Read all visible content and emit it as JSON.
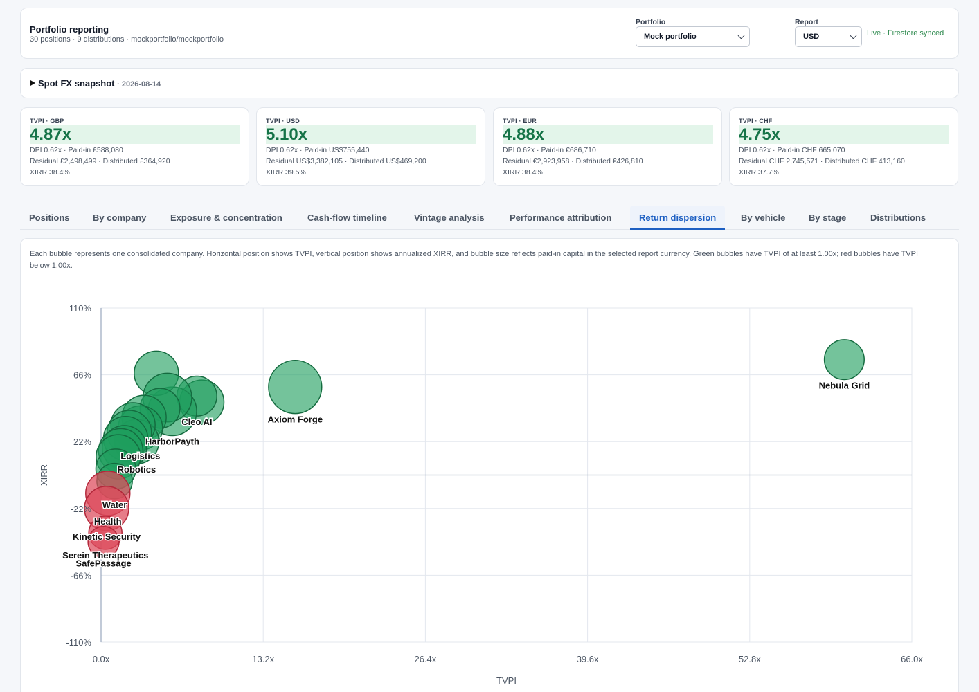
{
  "header": {
    "title": "Portfolio reporting",
    "subtitle": "30 positions · 9 distributions · mockportfolio/mockportfolio",
    "portfolio_label": "Portfolio",
    "portfolio_value": "Mock portfolio",
    "report_label": "Report",
    "report_value": "USD",
    "sync_status": "Live · Firestore synced"
  },
  "fx": {
    "label": "Spot FX snapshot",
    "date": "· 2026-08-14"
  },
  "kpis": [
    {
      "label": "TVPI · GBP",
      "value": "4.87x",
      "line1": "DPI 0.62x · Paid-in £588,080",
      "line2": "Residual £2,498,499 · Distributed £364,920",
      "line3": "XIRR 38.4%"
    },
    {
      "label": "TVPI · USD",
      "value": "5.10x",
      "line1": "DPI 0.62x · Paid-in US$755,440",
      "line2": "Residual US$3,382,105 · Distributed US$469,200",
      "line3": "XIRR 39.5%"
    },
    {
      "label": "TVPI · EUR",
      "value": "4.88x",
      "line1": "DPI 0.62x · Paid-in €686,710",
      "line2": "Residual €2,923,958 · Distributed €426,810",
      "line3": "XIRR 38.4%"
    },
    {
      "label": "TVPI · CHF",
      "value": "4.75x",
      "line1": "DPI 0.62x · Paid-in CHF 665,070",
      "line2": "Residual CHF 2,745,571 · Distributed CHF 413,160",
      "line3": "XIRR 37.7%"
    }
  ],
  "tabs": [
    {
      "label": "Positions"
    },
    {
      "label": "By company"
    },
    {
      "label": "Exposure & concentration"
    },
    {
      "label": "Cash-flow timeline"
    },
    {
      "label": "Vintage analysis"
    },
    {
      "label": "Performance attribution"
    },
    {
      "label": "Return dispersion",
      "active": true
    },
    {
      "label": "By vehicle"
    },
    {
      "label": "By stage"
    },
    {
      "label": "Distributions"
    }
  ],
  "chart_description": "Each bubble represents one consolidated company. Horizontal position shows TVPI, vertical position shows annualized XIRR, and bubble size reflects paid-in capital in the selected report currency. Green bubbles have TVPI of at least 1.00x; red bubbles have TVPI below 1.00x.",
  "colors": {
    "positive": "#1e9e5e",
    "negative": "#dc4a5a",
    "accent": "#1d5fc2"
  },
  "chart_data": {
    "type": "scatter",
    "xlabel": "TVPI",
    "ylabel": "XIRR",
    "xlim": [
      0,
      66
    ],
    "ylim": [
      -110,
      110
    ],
    "x_ticks": [
      "0.0x",
      "13.2x",
      "26.4x",
      "39.6x",
      "52.8x",
      "66.0x"
    ],
    "y_ticks": [
      "110%",
      "66%",
      "22%",
      "-22%",
      "-66%",
      "-110%"
    ],
    "grid": true,
    "points": [
      {
        "label": "Nebula Grid",
        "tvpi": 60.5,
        "xirr": 76,
        "size": 0.9,
        "positive": true
      },
      {
        "label": "Axiom Forge",
        "tvpi": 15.8,
        "xirr": 58,
        "size": 1.2,
        "positive": true
      },
      {
        "label": "",
        "tvpi": 8.2,
        "xirr": 48,
        "size": 1.0,
        "positive": true
      },
      {
        "label": "Cleo AI",
        "tvpi": 7.8,
        "xirr": 52,
        "size": 0.9,
        "positive": true
      },
      {
        "label": "HarborPayth",
        "tvpi": 5.8,
        "xirr": 42,
        "size": 1.1,
        "positive": true
      },
      {
        "label": "",
        "tvpi": 4.5,
        "xirr": 67,
        "size": 1.0,
        "positive": true
      },
      {
        "label": "",
        "tvpi": 5.4,
        "xirr": 51,
        "size": 1.1,
        "positive": true
      },
      {
        "label": "",
        "tvpi": 4.8,
        "xirr": 44,
        "size": 0.9,
        "positive": true
      },
      {
        "label": "",
        "tvpi": 3.5,
        "xirr": 38,
        "size": 1.0,
        "positive": true
      },
      {
        "label": "Logistics",
        "tvpi": 3.2,
        "xirr": 31,
        "size": 1.0,
        "positive": true
      },
      {
        "label": "Robotics",
        "tvpi": 2.9,
        "xirr": 22,
        "size": 1.0,
        "positive": true
      },
      {
        "label": "",
        "tvpi": 2.6,
        "xirr": 33,
        "size": 1.0,
        "positive": true
      },
      {
        "label": "",
        "tvpi": 2.3,
        "xirr": 28,
        "size": 1.0,
        "positive": true
      },
      {
        "label": "",
        "tvpi": 2.0,
        "xirr": 24,
        "size": 1.0,
        "positive": true
      },
      {
        "label": "",
        "tvpi": 1.9,
        "xirr": 18,
        "size": 1.0,
        "positive": true
      },
      {
        "label": "",
        "tvpi": 1.6,
        "xirr": 16,
        "size": 1.0,
        "positive": true
      },
      {
        "label": "",
        "tvpi": 1.4,
        "xirr": 12,
        "size": 1.0,
        "positive": true
      },
      {
        "label": "",
        "tvpi": 1.2,
        "xirr": 4,
        "size": 0.9,
        "positive": true
      },
      {
        "label": "Water",
        "tvpi": 1.1,
        "xirr": -4,
        "size": 0.8,
        "positive": true
      },
      {
        "label": "Health",
        "tvpi": 0.55,
        "xirr": -12,
        "size": 1.0,
        "positive": false
      },
      {
        "label": "Kinetic Security",
        "tvpi": 0.45,
        "xirr": -22,
        "size": 1.0,
        "positive": false
      },
      {
        "label": "Serein Therapeutics",
        "tvpi": 0.35,
        "xirr": -38,
        "size": 0.75,
        "positive": false
      },
      {
        "label": "SafePassage",
        "tvpi": 0.2,
        "xirr": -44,
        "size": 0.7,
        "positive": false
      }
    ]
  }
}
